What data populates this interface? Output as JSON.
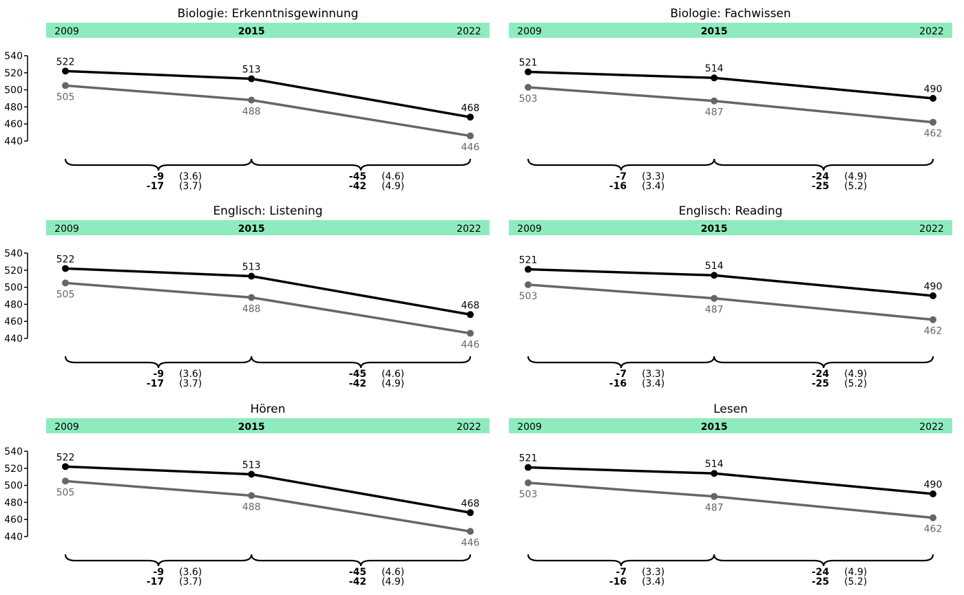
{
  "chart_data": [
    {
      "type": "line",
      "title": "Biologie: Erkenntnisgewinnung",
      "x": [
        "2009",
        "2015",
        "2022"
      ],
      "ylim": [
        440,
        540
      ],
      "yticks": [
        440,
        460,
        480,
        500,
        520,
        540
      ],
      "series": [
        {
          "values": [
            522,
            513,
            468
          ],
          "color": "#000000"
        },
        {
          "values": [
            505,
            488,
            446
          ],
          "color": "#666666"
        }
      ],
      "differences": [
        {
          "between": [
            "2009",
            "2015"
          ],
          "rows": [
            {
              "value": "-9",
              "se": "(3.6)"
            },
            {
              "value": "-17",
              "se": "(3.7)"
            }
          ]
        },
        {
          "between": [
            "2015",
            "2022"
          ],
          "rows": [
            {
              "value": "-45",
              "se": "(4.6)"
            },
            {
              "value": "-42",
              "se": "(4.9)"
            }
          ]
        }
      ]
    },
    {
      "type": "line",
      "title": "Biologie: Fachwissen",
      "x": [
        "2009",
        "2015",
        "2022"
      ],
      "ylim": [
        440,
        540
      ],
      "series": [
        {
          "values": [
            521,
            514,
            490
          ],
          "color": "#000000"
        },
        {
          "values": [
            503,
            487,
            462
          ],
          "color": "#666666"
        }
      ],
      "differences": [
        {
          "between": [
            "2009",
            "2015"
          ],
          "rows": [
            {
              "value": "-7",
              "se": "(3.3)"
            },
            {
              "value": "-16",
              "se": "(3.4)"
            }
          ]
        },
        {
          "between": [
            "2015",
            "2022"
          ],
          "rows": [
            {
              "value": "-24",
              "se": "(4.9)"
            },
            {
              "value": "-25",
              "se": "(5.2)"
            }
          ]
        }
      ]
    },
    {
      "type": "line",
      "title": "Englisch: Listening",
      "x": [
        "2009",
        "2015",
        "2022"
      ],
      "ylim": [
        440,
        540
      ],
      "yticks": [
        440,
        460,
        480,
        500,
        520,
        540
      ],
      "series": [
        {
          "values": [
            522,
            513,
            468
          ],
          "color": "#000000"
        },
        {
          "values": [
            505,
            488,
            446
          ],
          "color": "#666666"
        }
      ],
      "differences": [
        {
          "between": [
            "2009",
            "2015"
          ],
          "rows": [
            {
              "value": "-9",
              "se": "(3.6)"
            },
            {
              "value": "-17",
              "se": "(3.7)"
            }
          ]
        },
        {
          "between": [
            "2015",
            "2022"
          ],
          "rows": [
            {
              "value": "-45",
              "se": "(4.6)"
            },
            {
              "value": "-42",
              "se": "(4.9)"
            }
          ]
        }
      ]
    },
    {
      "type": "line",
      "title": "Englisch: Reading",
      "x": [
        "2009",
        "2015",
        "2022"
      ],
      "ylim": [
        440,
        540
      ],
      "series": [
        {
          "values": [
            521,
            514,
            490
          ],
          "color": "#000000"
        },
        {
          "values": [
            503,
            487,
            462
          ],
          "color": "#666666"
        }
      ],
      "differences": [
        {
          "between": [
            "2009",
            "2015"
          ],
          "rows": [
            {
              "value": "-7",
              "se": "(3.3)"
            },
            {
              "value": "-16",
              "se": "(3.4)"
            }
          ]
        },
        {
          "between": [
            "2015",
            "2022"
          ],
          "rows": [
            {
              "value": "-24",
              "se": "(4.9)"
            },
            {
              "value": "-25",
              "se": "(5.2)"
            }
          ]
        }
      ]
    },
    {
      "type": "line",
      "title": "Hören",
      "x": [
        "2009",
        "2015",
        "2022"
      ],
      "ylim": [
        440,
        540
      ],
      "yticks": [
        440,
        460,
        480,
        500,
        520,
        540
      ],
      "series": [
        {
          "values": [
            522,
            513,
            468
          ],
          "color": "#000000"
        },
        {
          "values": [
            505,
            488,
            446
          ],
          "color": "#666666"
        }
      ],
      "differences": [
        {
          "between": [
            "2009",
            "2015"
          ],
          "rows": [
            {
              "value": "-9",
              "se": "(3.6)"
            },
            {
              "value": "-17",
              "se": "(3.7)"
            }
          ]
        },
        {
          "between": [
            "2015",
            "2022"
          ],
          "rows": [
            {
              "value": "-45",
              "se": "(4.6)"
            },
            {
              "value": "-42",
              "se": "(4.9)"
            }
          ]
        }
      ]
    },
    {
      "type": "line",
      "title": "Lesen",
      "x": [
        "2009",
        "2015",
        "2022"
      ],
      "ylim": [
        440,
        540
      ],
      "series": [
        {
          "values": [
            521,
            514,
            490
          ],
          "color": "#000000"
        },
        {
          "values": [
            503,
            487,
            462
          ],
          "color": "#666666"
        }
      ],
      "differences": [
        {
          "between": [
            "2009",
            "2015"
          ],
          "rows": [
            {
              "value": "-7",
              "se": "(3.3)"
            },
            {
              "value": "-16",
              "se": "(3.4)"
            }
          ]
        },
        {
          "between": [
            "2015",
            "2022"
          ],
          "rows": [
            {
              "value": "-24",
              "se": "(4.9)"
            },
            {
              "value": "-25",
              "se": "(5.2)"
            }
          ]
        }
      ]
    }
  ],
  "style": {
    "strip_color": "#8eebbd"
  }
}
